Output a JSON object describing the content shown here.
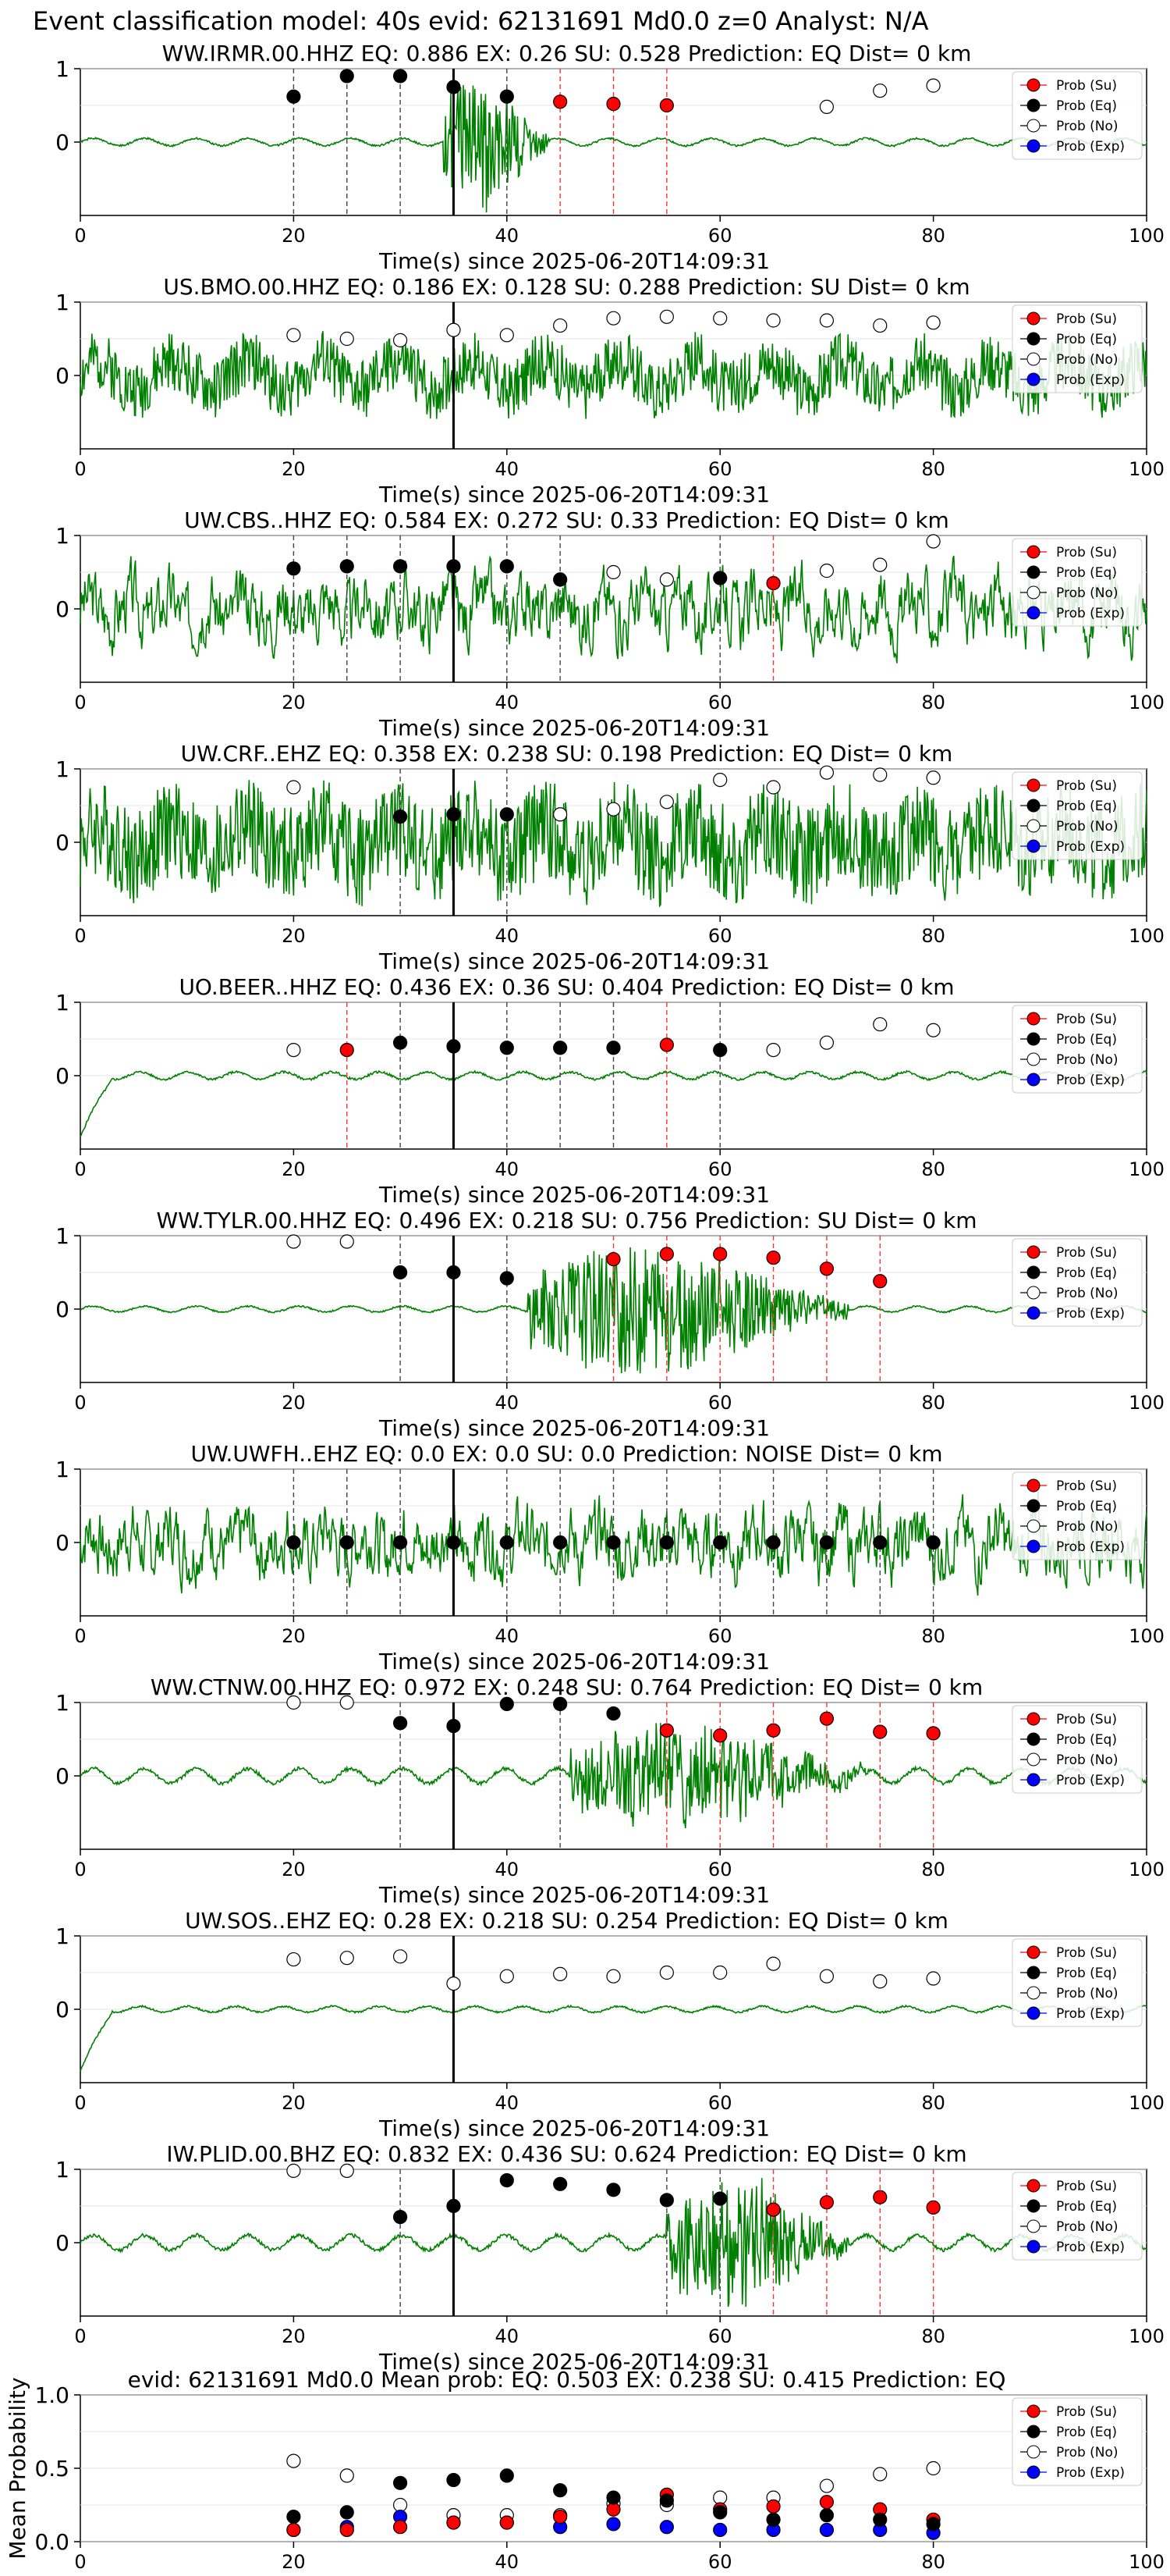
{
  "figure_title": "Event classification model: 40s evid: 62131691 Md0.0 z=0 Analyst: N/A",
  "legend_labels": [
    "Prob (Su)",
    "Prob (Eq)",
    "Prob (No)",
    "Prob (Exp)"
  ],
  "colors": {
    "su": "#ff0000",
    "eq": "#000000",
    "no": "#ffffff",
    "exp": "#0000ff",
    "trace": "#008000"
  },
  "chart_data": [
    {
      "type": "scatter",
      "title": "WW.IRMR.00.HHZ   EQ: 0.886   EX: 0.26   SU: 0.528   Prediction: EQ    Dist= 0 km",
      "xlabel": "Time(s) since 2025-06-20T14:09:31",
      "xlim": [
        0,
        100
      ],
      "ylim": [
        -1,
        1
      ],
      "xticks": [
        "0",
        "20",
        "40",
        "60",
        "80",
        "100"
      ],
      "yticks": [
        "1",
        "0"
      ],
      "trace": {
        "style": "quake",
        "start": 34,
        "end": 44,
        "amp": 0.95,
        "noise": 0.05,
        "seed": 1
      },
      "arrival": 35,
      "eq": [
        [
          20,
          0.62
        ],
        [
          25,
          0.9
        ],
        [
          30,
          0.9
        ],
        [
          35,
          0.75
        ],
        [
          40,
          0.62
        ]
      ],
      "su": [
        [
          45,
          0.55
        ],
        [
          50,
          0.52
        ],
        [
          55,
          0.5
        ]
      ],
      "no": [
        [
          70,
          0.48
        ],
        [
          75,
          0.7
        ],
        [
          80,
          0.77
        ]
      ],
      "eq_lines": [
        20,
        25,
        30,
        40
      ],
      "su_lines": [
        45,
        50,
        55
      ]
    },
    {
      "type": "scatter",
      "title": "US.BMO.00.HHZ   EQ: 0.186   EX: 0.128   SU: 0.288   Prediction: SU    Dist= 0 km",
      "xlabel": "Time(s) since 2025-06-20T14:09:31",
      "xlim": [
        0,
        100
      ],
      "ylim": [
        -1,
        1
      ],
      "xticks": [
        "0",
        "20",
        "40",
        "60",
        "80",
        "100"
      ],
      "yticks": [
        "1",
        "0"
      ],
      "trace": {
        "style": "noise",
        "amp": 0.45,
        "seed": 2
      },
      "arrival": 35,
      "eq": [],
      "su": [],
      "no": [
        [
          20,
          0.55
        ],
        [
          25,
          0.5
        ],
        [
          30,
          0.48
        ],
        [
          35,
          0.62
        ],
        [
          40,
          0.55
        ],
        [
          45,
          0.68
        ],
        [
          50,
          0.78
        ],
        [
          55,
          0.8
        ],
        [
          60,
          0.78
        ],
        [
          65,
          0.75
        ],
        [
          70,
          0.75
        ],
        [
          75,
          0.68
        ],
        [
          80,
          0.72
        ]
      ],
      "eq_lines": [],
      "su_lines": []
    },
    {
      "type": "scatter",
      "title": "UW.CBS..HHZ   EQ: 0.584   EX: 0.272   SU: 0.33   Prediction: EQ    Dist= 0 km",
      "xlabel": "Time(s) since 2025-06-20T14:09:31",
      "xlim": [
        0,
        100
      ],
      "ylim": [
        -1,
        1
      ],
      "xticks": [
        "0",
        "20",
        "40",
        "60",
        "80",
        "100"
      ],
      "yticks": [
        "1",
        "0"
      ],
      "trace": {
        "style": "wavy",
        "amp": 0.5,
        "seed": 3
      },
      "arrival": 35,
      "eq": [
        [
          20,
          0.55
        ],
        [
          25,
          0.58
        ],
        [
          30,
          0.58
        ],
        [
          35,
          0.58
        ],
        [
          40,
          0.58
        ],
        [
          45,
          0.4
        ],
        [
          60,
          0.42
        ]
      ],
      "su": [
        [
          65,
          0.35
        ]
      ],
      "no": [
        [
          50,
          0.5
        ],
        [
          55,
          0.4
        ],
        [
          70,
          0.52
        ],
        [
          75,
          0.6
        ],
        [
          80,
          0.92
        ]
      ],
      "eq_lines": [
        20,
        25,
        30,
        40,
        45,
        60
      ],
      "su_lines": [
        65
      ]
    },
    {
      "type": "scatter",
      "title": "UW.CRF..EHZ   EQ: 0.358   EX: 0.238   SU: 0.198   Prediction: EQ    Dist= 0 km",
      "xlabel": "Time(s) since 2025-06-20T14:09:31",
      "xlim": [
        0,
        100
      ],
      "ylim": [
        -1,
        1
      ],
      "xticks": [
        "0",
        "20",
        "40",
        "60",
        "80",
        "100"
      ],
      "yticks": [
        "1",
        "0"
      ],
      "trace": {
        "style": "noise",
        "amp": 0.75,
        "seed": 4
      },
      "arrival": 35,
      "eq": [
        [
          30,
          0.35
        ],
        [
          35,
          0.38
        ],
        [
          40,
          0.38
        ]
      ],
      "su": [],
      "no": [
        [
          20,
          0.75
        ],
        [
          45,
          0.38
        ],
        [
          50,
          0.45
        ],
        [
          55,
          0.55
        ],
        [
          60,
          0.85
        ],
        [
          65,
          0.75
        ],
        [
          70,
          0.95
        ],
        [
          75,
          0.92
        ],
        [
          80,
          0.88
        ]
      ],
      "eq_lines": [
        30,
        40
      ],
      "su_lines": []
    },
    {
      "type": "scatter",
      "title": "UO.BEER..HHZ   EQ: 0.436   EX: 0.36   SU: 0.404   Prediction: EQ    Dist= 0 km",
      "xlabel": "Time(s) since 2025-06-20T14:09:31",
      "xlim": [
        0,
        100
      ],
      "ylim": [
        -1,
        1
      ],
      "xticks": [
        "0",
        "20",
        "40",
        "60",
        "80",
        "100"
      ],
      "yticks": [
        "1",
        "0"
      ],
      "trace": {
        "style": "calm",
        "amp": 0.05,
        "seed": 5,
        "spike": true
      },
      "arrival": 35,
      "eq": [
        [
          30,
          0.45
        ],
        [
          35,
          0.4
        ],
        [
          40,
          0.38
        ],
        [
          45,
          0.38
        ],
        [
          50,
          0.38
        ],
        [
          60,
          0.35
        ]
      ],
      "su": [
        [
          25,
          0.35
        ],
        [
          55,
          0.42
        ]
      ],
      "no": [
        [
          20,
          0.35
        ],
        [
          65,
          0.35
        ],
        [
          70,
          0.45
        ],
        [
          75,
          0.7
        ],
        [
          80,
          0.62
        ]
      ],
      "eq_lines": [
        30,
        40,
        45,
        50,
        60
      ],
      "su_lines": [
        25,
        55
      ]
    },
    {
      "type": "scatter",
      "title": "WW.TYLR.00.HHZ   EQ: 0.496   EX: 0.218   SU: 0.756   Prediction: SU    Dist= 0 km",
      "xlabel": "Time(s) since 2025-06-20T14:09:31",
      "xlim": [
        0,
        100
      ],
      "ylim": [
        -1,
        1
      ],
      "xticks": [
        "0",
        "20",
        "40",
        "60",
        "80",
        "100"
      ],
      "yticks": [
        "1",
        "0"
      ],
      "trace": {
        "style": "quake",
        "start": 42,
        "end": 72,
        "amp": 0.9,
        "noise": 0.04,
        "seed": 6
      },
      "arrival": 35,
      "eq": [
        [
          30,
          0.5
        ],
        [
          35,
          0.5
        ],
        [
          40,
          0.42
        ]
      ],
      "su": [
        [
          50,
          0.68
        ],
        [
          55,
          0.75
        ],
        [
          60,
          0.75
        ],
        [
          65,
          0.7
        ],
        [
          70,
          0.55
        ],
        [
          75,
          0.38
        ]
      ],
      "no": [
        [
          20,
          0.92
        ],
        [
          25,
          0.92
        ]
      ],
      "eq_lines": [
        30,
        40
      ],
      "su_lines": [
        50,
        55,
        60,
        65,
        70,
        75
      ]
    },
    {
      "type": "scatter",
      "title": "UW.UWFH..EHZ   EQ: 0.0   EX: 0.0   SU: 0.0   Prediction: NOISE    Dist= 0 km",
      "xlabel": "Time(s) since 2025-06-20T14:09:31",
      "xlim": [
        0,
        100
      ],
      "ylim": [
        -1,
        1
      ],
      "xticks": [
        "0",
        "20",
        "40",
        "60",
        "80",
        "100"
      ],
      "yticks": [
        "1",
        "0"
      ],
      "trace": {
        "style": "wavy",
        "amp": 0.5,
        "seed": 7
      },
      "arrival": 35,
      "eq": [
        [
          20,
          0
        ],
        [
          25,
          0
        ],
        [
          30,
          0
        ],
        [
          35,
          0
        ],
        [
          40,
          0
        ],
        [
          45,
          0
        ],
        [
          50,
          0
        ],
        [
          55,
          0
        ],
        [
          60,
          0
        ],
        [
          65,
          0
        ],
        [
          70,
          0
        ],
        [
          75,
          0
        ],
        [
          80,
          0
        ]
      ],
      "su": [],
      "no": [],
      "eq_lines": [
        20,
        25,
        30,
        40,
        45,
        50,
        55,
        60,
        65,
        70,
        75,
        80
      ],
      "su_lines": []
    },
    {
      "type": "scatter",
      "title": "WW.CTNW.00.HHZ   EQ: 0.972   EX: 0.248   SU: 0.764   Prediction: EQ    Dist= 0 km",
      "xlabel": "Time(s) since 2025-06-20T14:09:31",
      "xlim": [
        0,
        100
      ],
      "ylim": [
        -1,
        1
      ],
      "xticks": [
        "0",
        "20",
        "40",
        "60",
        "80",
        "100"
      ],
      "yticks": [
        "1",
        "0"
      ],
      "trace": {
        "style": "quake",
        "start": 46,
        "end": 74,
        "amp": 0.7,
        "noise": 0.1,
        "seed": 8
      },
      "arrival": 35,
      "eq": [
        [
          30,
          0.72
        ],
        [
          35,
          0.68
        ],
        [
          40,
          0.98
        ],
        [
          45,
          0.98
        ],
        [
          50,
          0.85
        ]
      ],
      "su": [
        [
          55,
          0.62
        ],
        [
          60,
          0.55
        ],
        [
          65,
          0.62
        ],
        [
          70,
          0.78
        ],
        [
          75,
          0.6
        ],
        [
          80,
          0.58
        ]
      ],
      "no": [
        [
          20,
          1.0
        ],
        [
          25,
          1.0
        ]
      ],
      "eq_lines": [
        30,
        45
      ],
      "su_lines": [
        55,
        60,
        65,
        70,
        75,
        80
      ]
    },
    {
      "type": "scatter",
      "title": "UW.SOS..EHZ   EQ: 0.28   EX: 0.218   SU: 0.254   Prediction: EQ    Dist= 0 km",
      "xlabel": "Time(s) since 2025-06-20T14:09:31",
      "xlim": [
        0,
        100
      ],
      "ylim": [
        -1,
        1
      ],
      "xticks": [
        "0",
        "20",
        "40",
        "60",
        "80",
        "100"
      ],
      "yticks": [
        "1",
        "0"
      ],
      "trace": {
        "style": "calm",
        "amp": 0.04,
        "seed": 9,
        "spike": true
      },
      "arrival": 35,
      "eq": [],
      "su": [],
      "no": [
        [
          20,
          0.68
        ],
        [
          25,
          0.7
        ],
        [
          30,
          0.72
        ],
        [
          35,
          0.35
        ],
        [
          40,
          0.45
        ],
        [
          45,
          0.48
        ],
        [
          50,
          0.45
        ],
        [
          55,
          0.5
        ],
        [
          60,
          0.5
        ],
        [
          65,
          0.62
        ],
        [
          70,
          0.45
        ],
        [
          75,
          0.38
        ],
        [
          80,
          0.42
        ]
      ],
      "eq_lines": [],
      "su_lines": []
    },
    {
      "type": "scatter",
      "title": "IW.PLID.00.BHZ   EQ: 0.832   EX: 0.436   SU: 0.624   Prediction: EQ    Dist= 0 km",
      "xlabel": "Time(s) since 2025-06-20T14:09:31",
      "xlim": [
        0,
        100
      ],
      "ylim": [
        -1,
        1
      ],
      "xticks": [
        "0",
        "20",
        "40",
        "60",
        "80",
        "100"
      ],
      "yticks": [
        "1",
        "0"
      ],
      "trace": {
        "style": "quake",
        "start": 55,
        "end": 72,
        "amp": 0.9,
        "noise": 0.1,
        "seed": 10
      },
      "arrival": 35,
      "eq": [
        [
          30,
          0.35
        ],
        [
          35,
          0.5
        ],
        [
          40,
          0.85
        ],
        [
          45,
          0.8
        ],
        [
          50,
          0.72
        ],
        [
          55,
          0.58
        ],
        [
          60,
          0.6
        ]
      ],
      "su": [
        [
          65,
          0.45
        ],
        [
          70,
          0.55
        ],
        [
          75,
          0.62
        ],
        [
          80,
          0.48
        ]
      ],
      "no": [
        [
          20,
          0.98
        ],
        [
          25,
          0.98
        ]
      ],
      "eq_lines": [
        30,
        55,
        60
      ],
      "su_lines": [
        65,
        70,
        75,
        80
      ]
    },
    {
      "type": "scatter",
      "title": "evid: 62131691  Md0.0   Mean prob:   EQ: 0.503  EX: 0.238  SU: 0.415   Prediction: EQ",
      "xlabel": "",
      "ylabel": "Mean Probability",
      "xlim": [
        0,
        100
      ],
      "ylim": [
        0,
        1
      ],
      "xticks": [
        "0",
        "20",
        "40",
        "60",
        "80",
        "100"
      ],
      "yticks": [
        "1.0",
        "0.5",
        "0.0"
      ],
      "mean": true,
      "eq": [
        [
          20,
          0.17
        ],
        [
          25,
          0.2
        ],
        [
          30,
          0.4
        ],
        [
          35,
          0.42
        ],
        [
          40,
          0.45
        ],
        [
          45,
          0.35
        ],
        [
          50,
          0.3
        ],
        [
          55,
          0.28
        ],
        [
          60,
          0.2
        ],
        [
          65,
          0.15
        ],
        [
          70,
          0.18
        ],
        [
          75,
          0.15
        ],
        [
          80,
          0.12
        ]
      ],
      "su": [
        [
          20,
          0.08
        ],
        [
          25,
          0.08
        ],
        [
          30,
          0.1
        ],
        [
          35,
          0.13
        ],
        [
          40,
          0.13
        ],
        [
          45,
          0.17
        ],
        [
          50,
          0.22
        ],
        [
          55,
          0.32
        ],
        [
          60,
          0.22
        ],
        [
          65,
          0.24
        ],
        [
          70,
          0.27
        ],
        [
          75,
          0.22
        ],
        [
          80,
          0.15
        ]
      ],
      "no": [
        [
          20,
          0.55
        ],
        [
          25,
          0.45
        ],
        [
          30,
          0.25
        ],
        [
          35,
          0.18
        ],
        [
          40,
          0.18
        ],
        [
          45,
          0.18
        ],
        [
          50,
          0.26
        ],
        [
          55,
          0.25
        ],
        [
          60,
          0.3
        ],
        [
          65,
          0.3
        ],
        [
          70,
          0.38
        ],
        [
          75,
          0.46
        ],
        [
          80,
          0.5
        ]
      ],
      "exp": [
        [
          20,
          0.08
        ],
        [
          25,
          0.1
        ],
        [
          30,
          0.17
        ],
        [
          35,
          0.13
        ],
        [
          40,
          0.13
        ],
        [
          45,
          0.1
        ],
        [
          50,
          0.12
        ],
        [
          55,
          0.1
        ],
        [
          60,
          0.08
        ],
        [
          65,
          0.08
        ],
        [
          70,
          0.08
        ],
        [
          75,
          0.08
        ],
        [
          80,
          0.06
        ]
      ]
    }
  ]
}
